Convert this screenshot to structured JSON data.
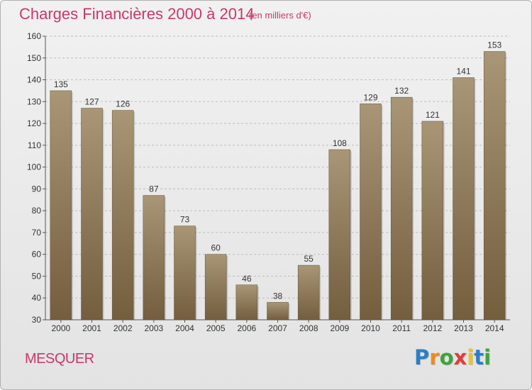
{
  "header": {
    "title": "Charges Financières 2000 à 2014",
    "subtitle": "(en milliers d'€)"
  },
  "footer": {
    "commune": "MESQUER",
    "logo": {
      "letters": [
        "P",
        "r",
        "o",
        "x",
        "i",
        "t",
        "i"
      ],
      "colors": [
        "#2a7fc4",
        "#f08a1c",
        "#3aa63a",
        "#e23b3b",
        "#f0c21c",
        "#2a7fc4",
        "#3aa63a"
      ]
    }
  },
  "colors": {
    "bar_top": "#a89676",
    "bar_bottom": "#735e3e",
    "title": "#c8386a",
    "axis": "#555555",
    "grid": "#bdbdbd"
  },
  "chart_data": {
    "type": "bar",
    "title": "Charges Financières 2000 à 2014",
    "subtitle": "(en milliers d'€)",
    "categories": [
      "2000",
      "2001",
      "2002",
      "2003",
      "2004",
      "2005",
      "2006",
      "2007",
      "2008",
      "2009",
      "2010",
      "2011",
      "2012",
      "2013",
      "2014"
    ],
    "values": [
      135,
      127,
      126,
      87,
      73,
      60,
      46,
      38,
      55,
      108,
      129,
      132,
      121,
      141,
      153
    ],
    "xlabel": "",
    "ylabel": "",
    "ylim": [
      30,
      160
    ],
    "yticks": [
      30,
      40,
      50,
      60,
      70,
      80,
      90,
      100,
      110,
      120,
      130,
      140,
      150,
      160
    ],
    "grid": true,
    "data_labels": true
  }
}
